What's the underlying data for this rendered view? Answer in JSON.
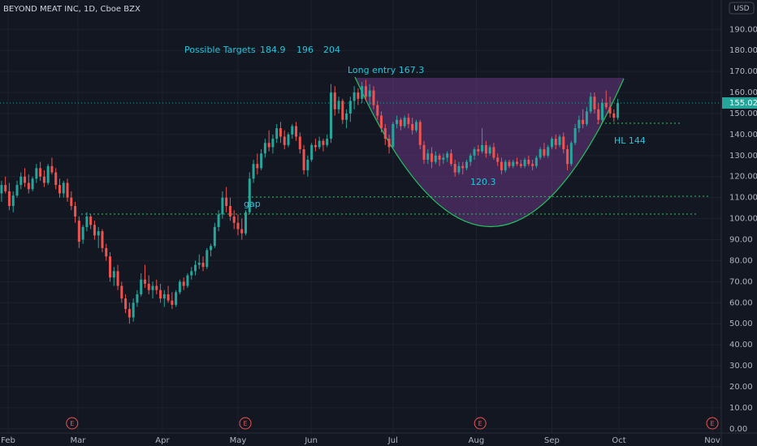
{
  "chart_data": {
    "type": "candlestick",
    "title": "BEYOND MEAT INC, 1D, Cboe BZX",
    "currency": "USD",
    "up_color": "#26a69a",
    "down_color": "#ef5350",
    "candles": [
      [
        112,
        118,
        108,
        116
      ],
      [
        116,
        120,
        112,
        113
      ],
      [
        113,
        117,
        104,
        106
      ],
      [
        106,
        113,
        103,
        111
      ],
      [
        111,
        118,
        110,
        116
      ],
      [
        116,
        122,
        114,
        120
      ],
      [
        120,
        124,
        115,
        117
      ],
      [
        117,
        121,
        112,
        114
      ],
      [
        114,
        120,
        113,
        119
      ],
      [
        119,
        126,
        117,
        124
      ],
      [
        124,
        127,
        118,
        120
      ],
      [
        120,
        123,
        115,
        117
      ],
      [
        117,
        126,
        116,
        125
      ],
      [
        125,
        129,
        121,
        122
      ],
      [
        122,
        124,
        114,
        116
      ],
      [
        116,
        119,
        110,
        112
      ],
      [
        112,
        118,
        110,
        117
      ],
      [
        117,
        119,
        108,
        110
      ],
      [
        110,
        113,
        104,
        106
      ],
      [
        106,
        108,
        98,
        101
      ],
      [
        99,
        101,
        86,
        89
      ],
      [
        90,
        97,
        88,
        96
      ],
      [
        96,
        103,
        94,
        101
      ],
      [
        101,
        102,
        95,
        97
      ],
      [
        97,
        99,
        90,
        92
      ],
      [
        92,
        96,
        86,
        94
      ],
      [
        94,
        95,
        84,
        86
      ],
      [
        86,
        88,
        80,
        82
      ],
      [
        82,
        84,
        70,
        72
      ],
      [
        72,
        77,
        68,
        75
      ],
      [
        75,
        78,
        66,
        68
      ],
      [
        68,
        70,
        60,
        62
      ],
      [
        62,
        64,
        55,
        57
      ],
      [
        57,
        60,
        50,
        53
      ],
      [
        53,
        62,
        51,
        60
      ],
      [
        60,
        66,
        58,
        64
      ],
      [
        64,
        74,
        63,
        71
      ],
      [
        71,
        78,
        67,
        69
      ],
      [
        69,
        73,
        64,
        66
      ],
      [
        66,
        70,
        62,
        68
      ],
      [
        68,
        71,
        64,
        66
      ],
      [
        66,
        69,
        60,
        62
      ],
      [
        62,
        66,
        58,
        64
      ],
      [
        64,
        68,
        60,
        61
      ],
      [
        61,
        65,
        57,
        59
      ],
      [
        59,
        66,
        58,
        65
      ],
      [
        65,
        71,
        64,
        70
      ],
      [
        70,
        72,
        66,
        68
      ],
      [
        68,
        74,
        67,
        73
      ],
      [
        73,
        77,
        71,
        75
      ],
      [
        75,
        80,
        73,
        78
      ],
      [
        78,
        83,
        76,
        79
      ],
      [
        79,
        82,
        75,
        77
      ],
      [
        77,
        86,
        76,
        85
      ],
      [
        85,
        88,
        82,
        87
      ],
      [
        87,
        98,
        86,
        96
      ],
      [
        96,
        104,
        94,
        102
      ],
      [
        102,
        113,
        100,
        110
      ],
      [
        110,
        115,
        103,
        106
      ],
      [
        106,
        110,
        99,
        101
      ],
      [
        101,
        104,
        95,
        98
      ],
      [
        98,
        102,
        92,
        95
      ],
      [
        95,
        100,
        90,
        93
      ],
      [
        93,
        104,
        92,
        103
      ],
      [
        103,
        122,
        102,
        119
      ],
      [
        119,
        128,
        117,
        126
      ],
      [
        126,
        131,
        121,
        124
      ],
      [
        124,
        133,
        123,
        131
      ],
      [
        131,
        138,
        129,
        136
      ],
      [
        136,
        142,
        132,
        134
      ],
      [
        134,
        140,
        131,
        138
      ],
      [
        138,
        145,
        136,
        143
      ],
      [
        143,
        146,
        136,
        139
      ],
      [
        139,
        142,
        133,
        135
      ],
      [
        135,
        141,
        134,
        140
      ],
      [
        140,
        145,
        138,
        144
      ],
      [
        144,
        146,
        137,
        139
      ],
      [
        139,
        141,
        131,
        133
      ],
      [
        133,
        135,
        121,
        123
      ],
      [
        123,
        130,
        120,
        128
      ],
      [
        128,
        136,
        127,
        135
      ],
      [
        135,
        138,
        132,
        134
      ],
      [
        134,
        139,
        133,
        137
      ],
      [
        137,
        138,
        132,
        135
      ],
      [
        135,
        140,
        134,
        138
      ],
      [
        138,
        164,
        136,
        160
      ],
      [
        160,
        163,
        149,
        152
      ],
      [
        152,
        158,
        150,
        156
      ],
      [
        156,
        157,
        145,
        147
      ],
      [
        147,
        152,
        143,
        150
      ],
      [
        150,
        158,
        146,
        156
      ],
      [
        156,
        163,
        152,
        160
      ],
      [
        160,
        162,
        154,
        157
      ],
      [
        157,
        165,
        155,
        163
      ],
      [
        163,
        166,
        156,
        158
      ],
      [
        158,
        164,
        154,
        161
      ],
      [
        161,
        163,
        152,
        154
      ],
      [
        154,
        156,
        147,
        149
      ],
      [
        149,
        151,
        141,
        143
      ],
      [
        143,
        145,
        135,
        138
      ],
      [
        138,
        140,
        131,
        134
      ],
      [
        134,
        146,
        133,
        145
      ],
      [
        145,
        149,
        143,
        147
      ],
      [
        147,
        148,
        142,
        144
      ],
      [
        144,
        149,
        143,
        148
      ],
      [
        148,
        150,
        143,
        145
      ],
      [
        145,
        148,
        140,
        142
      ],
      [
        142,
        147,
        141,
        146
      ],
      [
        146,
        147,
        133,
        135
      ],
      [
        135,
        137,
        126,
        128
      ],
      [
        128,
        133,
        126,
        131
      ],
      [
        131,
        134,
        124,
        127
      ],
      [
        127,
        132,
        126,
        130
      ],
      [
        130,
        131,
        125,
        128
      ],
      [
        128,
        131,
        126,
        129
      ],
      [
        129,
        132,
        127,
        131
      ],
      [
        131,
        133,
        125,
        126
      ],
      [
        126,
        128,
        120,
        122
      ],
      [
        122,
        127,
        121,
        125
      ],
      [
        125,
        127,
        121,
        124
      ],
      [
        124,
        128,
        123,
        127
      ],
      [
        127,
        131,
        125,
        130
      ],
      [
        130,
        134,
        128,
        133
      ],
      [
        133,
        135,
        130,
        132
      ],
      [
        132,
        143,
        131,
        135
      ],
      [
        135,
        137,
        129,
        131
      ],
      [
        131,
        135,
        130,
        134
      ],
      [
        134,
        136,
        128,
        129
      ],
      [
        129,
        131,
        125,
        127
      ],
      [
        127,
        129,
        121,
        123
      ],
      [
        123,
        128,
        122,
        127
      ],
      [
        127,
        128,
        124,
        125
      ],
      [
        125,
        128,
        124,
        127
      ],
      [
        127,
        129,
        125,
        126
      ],
      [
        126,
        128,
        124,
        125
      ],
      [
        125,
        129,
        124,
        128
      ],
      [
        128,
        130,
        125,
        126
      ],
      [
        126,
        128,
        123,
        125
      ],
      [
        125,
        130,
        124,
        129
      ],
      [
        129,
        134,
        128,
        133
      ],
      [
        133,
        136,
        129,
        130
      ],
      [
        130,
        135,
        129,
        134
      ],
      [
        134,
        139,
        133,
        138
      ],
      [
        138,
        140,
        133,
        135
      ],
      [
        135,
        140,
        134,
        139
      ],
      [
        139,
        141,
        131,
        133
      ],
      [
        133,
        135,
        123,
        126
      ],
      [
        126,
        137,
        125,
        136
      ],
      [
        136,
        145,
        135,
        143
      ],
      [
        143,
        149,
        141,
        147
      ],
      [
        147,
        152,
        143,
        145
      ],
      [
        145,
        153,
        144,
        151
      ],
      [
        151,
        160,
        150,
        158
      ],
      [
        158,
        160,
        150,
        152
      ],
      [
        152,
        155,
        145,
        147
      ],
      [
        147,
        157,
        146,
        155
      ],
      [
        155,
        161,
        152,
        153
      ],
      [
        153,
        158,
        148,
        150
      ],
      [
        150,
        152,
        146,
        148
      ],
      [
        148,
        157,
        147,
        155.02
      ]
    ],
    "ylim": [
      -2,
      204
    ],
    "yticks": [
      {
        "value": 0,
        "label": "0.00"
      },
      {
        "value": 10,
        "label": "10.00"
      },
      {
        "value": 20,
        "label": "20.00"
      },
      {
        "value": 30,
        "label": "30.00"
      },
      {
        "value": 40,
        "label": "40.00"
      },
      {
        "value": 50,
        "label": "50.00"
      },
      {
        "value": 60,
        "label": "60.00"
      },
      {
        "value": 70,
        "label": "70.00"
      },
      {
        "value": 80,
        "label": "80.00"
      },
      {
        "value": 90,
        "label": "90.00"
      },
      {
        "value": 100,
        "label": "100.00"
      },
      {
        "value": 110,
        "label": "110.00"
      },
      {
        "value": 120,
        "label": "120.00"
      },
      {
        "value": 130,
        "label": "130.00"
      },
      {
        "value": 140,
        "label": "140.00"
      },
      {
        "value": 150,
        "label": "150.00"
      },
      {
        "value": 160,
        "label": "160.00"
      },
      {
        "value": 170,
        "label": "170.00"
      },
      {
        "value": 180,
        "label": "180.00"
      },
      {
        "value": 190,
        "label": "190.00"
      }
    ],
    "xlim": [
      -0.4,
      185.7
    ],
    "xticks": [
      {
        "value": 1.7,
        "label": "Feb"
      },
      {
        "value": 19.7,
        "label": "Mar"
      },
      {
        "value": 41.5,
        "label": "Apr"
      },
      {
        "value": 61,
        "label": "May"
      },
      {
        "value": 79.9,
        "label": "Jun"
      },
      {
        "value": 101,
        "label": "Jul"
      },
      {
        "value": 122.5,
        "label": "Aug"
      },
      {
        "value": 142,
        "label": "Sep"
      },
      {
        "value": 159.3,
        "label": "Oct"
      },
      {
        "value": 183.4,
        "label": "Nov"
      }
    ],
    "earnings_label": "E",
    "earnings": [
      18.2,
      62.9,
      123.5,
      183.4
    ],
    "annotations": {
      "targets_title": "Possible Targets",
      "targets": [
        184.9,
        196,
        204
      ],
      "entry": "Long entry 167.3",
      "gap": "gap",
      "low": "120.3",
      "hl": "HL 144"
    }
  }
}
